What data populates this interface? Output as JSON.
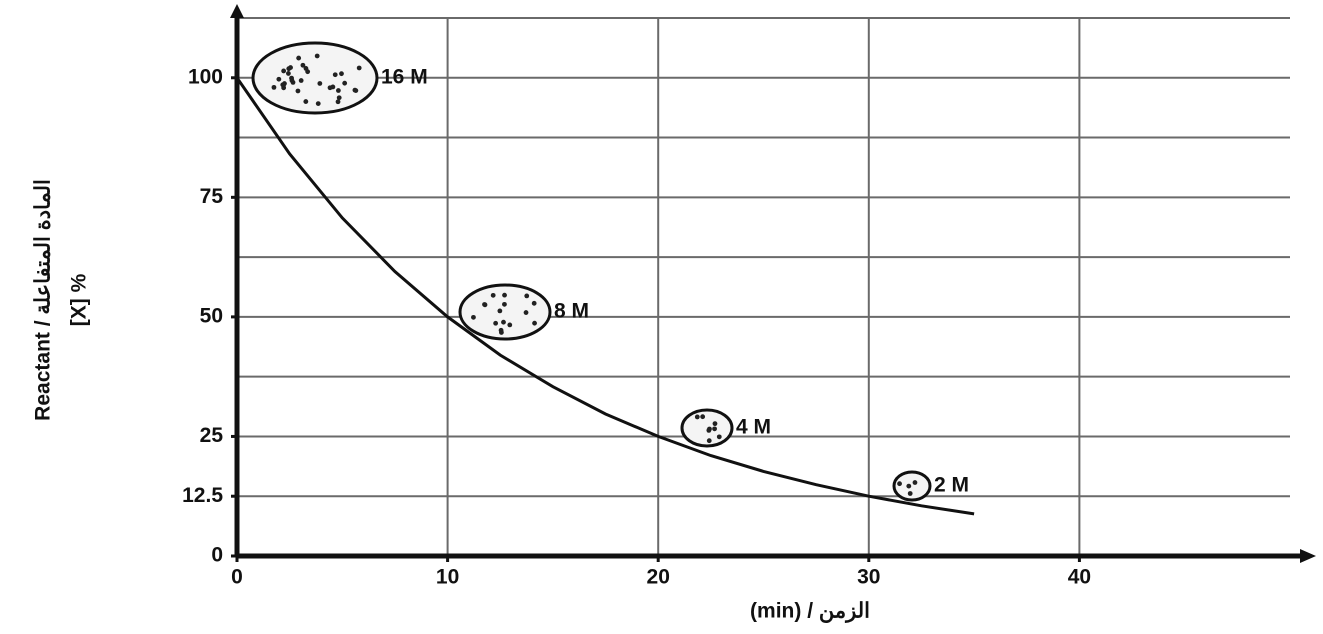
{
  "chart_data": {
    "type": "line",
    "x_label": "(min) / الزمن",
    "y_label": [
      "Reactant / المادة المتفاعلة",
      "[X] %"
    ],
    "x": [
      0,
      2.5,
      5,
      7.5,
      10,
      12.5,
      15,
      17.5,
      20,
      22.5,
      25,
      27.5,
      30,
      32.5,
      35
    ],
    "values": [
      100,
      84.1,
      70.7,
      59.5,
      50,
      42,
      35.4,
      29.7,
      25,
      21,
      17.7,
      14.9,
      12.5,
      10.5,
      8.8
    ],
    "color": "#111111",
    "xlim": [
      0,
      50
    ],
    "xticks": [
      0,
      10,
      20,
      30,
      40
    ],
    "ylim": [
      0,
      112.5
    ],
    "yticks": [
      0,
      12.5,
      25,
      50,
      75,
      100
    ],
    "ygrid": [
      12.5,
      25,
      37.5,
      50,
      62.5,
      75,
      87.5,
      100,
      112.5
    ],
    "grid": true,
    "annotations": [
      "16 M",
      "8 M",
      "4 M",
      "2 M"
    ]
  }
}
